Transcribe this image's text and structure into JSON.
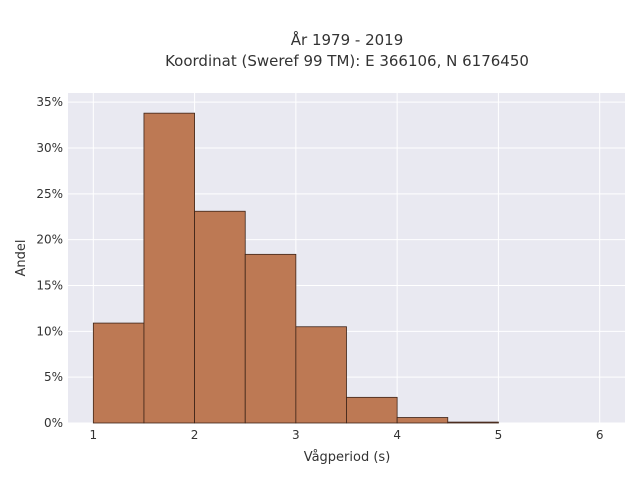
{
  "chart_data": {
    "type": "bar",
    "title": "År 1979 - 2019",
    "subtitle": "Koordinat (Sweref 99 TM): E 366106, N 6176450",
    "xlabel": "Vågperiod (s)",
    "ylabel": "Andel",
    "bin_edges": [
      1.0,
      1.5,
      2.0,
      2.5,
      3.0,
      3.5,
      4.0,
      4.5,
      5.0
    ],
    "values": [
      10.9,
      33.8,
      23.1,
      18.4,
      10.5,
      2.8,
      0.6,
      0.1
    ],
    "xlim": [
      0.75,
      6.25
    ],
    "ylim": [
      0,
      36
    ],
    "x_ticks": [
      1,
      2,
      3,
      4,
      5,
      6
    ],
    "x_tick_labels": [
      "1",
      "2",
      "3",
      "4",
      "5",
      "6"
    ],
    "y_ticks": [
      0,
      5,
      10,
      15,
      20,
      25,
      30,
      35
    ],
    "y_tick_labels": [
      "0%",
      "5%",
      "10%",
      "15%",
      "20%",
      "25%",
      "30%",
      "35%"
    ],
    "grid": true,
    "legend": "none",
    "colors": {
      "bar_fill": "#bd7954",
      "bar_edge": "#3d2418",
      "plot_background": "#e9e9f1",
      "grid": "#ffffff"
    }
  }
}
